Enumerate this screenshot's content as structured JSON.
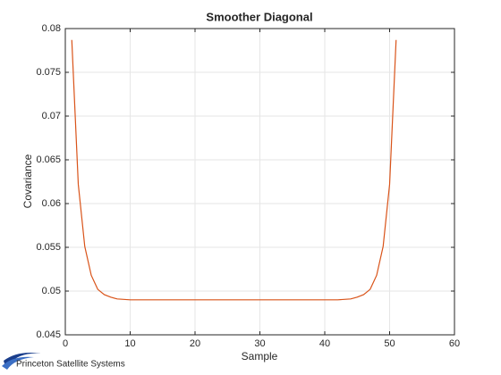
{
  "chart_data": {
    "type": "line",
    "title": "Smoother Diagonal",
    "xlabel": "Sample",
    "ylabel": "Covariance",
    "x": [
      1,
      2,
      3,
      4,
      5,
      6,
      7,
      8,
      9,
      10,
      11,
      12,
      13,
      14,
      15,
      16,
      17,
      18,
      19,
      20,
      21,
      22,
      23,
      24,
      25,
      26,
      27,
      28,
      29,
      30,
      31,
      32,
      33,
      34,
      35,
      36,
      37,
      38,
      39,
      40,
      41,
      42,
      43,
      44,
      45,
      46,
      47,
      48,
      49,
      50,
      51
    ],
    "series": [
      {
        "name": "Covariance",
        "color": "#d95319",
        "values": [
          0.0787,
          0.0622,
          0.0551,
          0.0518,
          0.0502,
          0.0496,
          0.0493,
          0.0491,
          0.04905,
          0.049,
          0.049,
          0.049,
          0.049,
          0.049,
          0.049,
          0.049,
          0.049,
          0.049,
          0.049,
          0.049,
          0.049,
          0.049,
          0.049,
          0.049,
          0.049,
          0.049,
          0.049,
          0.049,
          0.049,
          0.049,
          0.049,
          0.049,
          0.049,
          0.049,
          0.049,
          0.049,
          0.049,
          0.049,
          0.049,
          0.049,
          0.049,
          0.049,
          0.04905,
          0.0491,
          0.0493,
          0.0496,
          0.0502,
          0.0518,
          0.0551,
          0.0622,
          0.0787
        ]
      }
    ],
    "xlim": [
      0,
      60
    ],
    "xticks": [
      0,
      10,
      20,
      30,
      40,
      50,
      60
    ],
    "ylim": [
      0.045,
      0.08
    ],
    "yticks": [
      0.045,
      0.05,
      0.055,
      0.06,
      0.065,
      0.07,
      0.075,
      0.08
    ],
    "grid": true
  },
  "logo": "Princeton Satellite Systems"
}
